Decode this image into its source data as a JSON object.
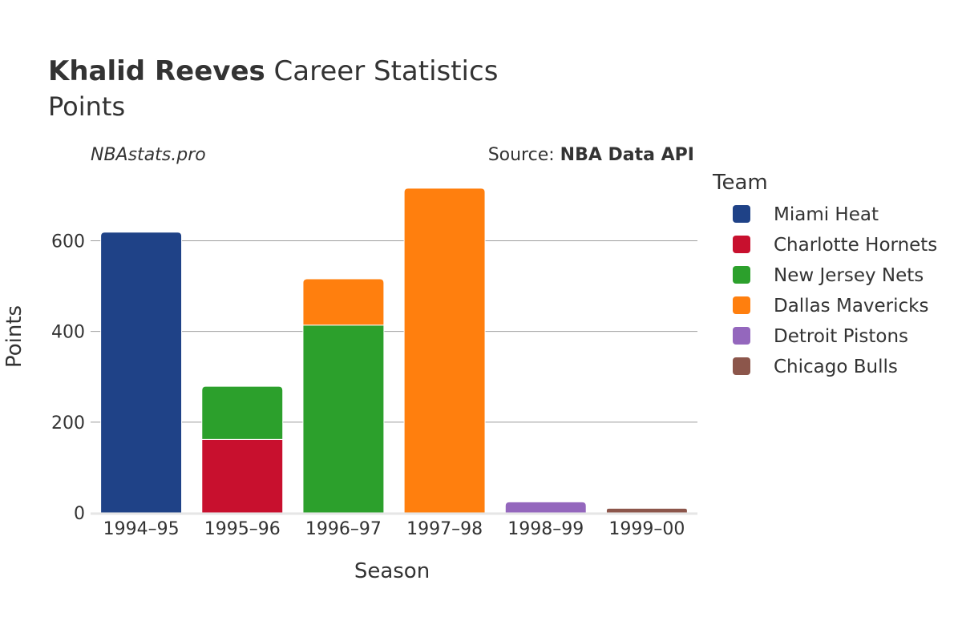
{
  "header": {
    "player_name": "Khalid Reeves",
    "title_rest": " Career Statistics",
    "subtitle": "Points"
  },
  "credits": {
    "site": "NBAstats.pro",
    "source_prefix": "Source: ",
    "source_name": "NBA Data API"
  },
  "legend": {
    "title": "Team",
    "placement": "right"
  },
  "chart_data": {
    "type": "bar",
    "stacked": true,
    "title": "Khalid Reeves Career Statistics",
    "subtitle": "Points",
    "xlabel": "Season",
    "ylabel": "Points",
    "ylim": [
      0,
      760
    ],
    "yticks": [
      0,
      200,
      400,
      600
    ],
    "grid": true,
    "categories": [
      "1994–95",
      "1995–96",
      "1996–97",
      "1997–98",
      "1998–99",
      "1999–00"
    ],
    "series": [
      {
        "name": "Miami Heat",
        "color": "#1f4287",
        "values": [
          619,
          0,
          0,
          0,
          0,
          0
        ]
      },
      {
        "name": "Charlotte Hornets",
        "color": "#c8102e",
        "values": [
          0,
          162,
          0,
          0,
          0,
          0
        ]
      },
      {
        "name": "New Jersey Nets",
        "color": "#2ca02c",
        "values": [
          0,
          117,
          414,
          0,
          0,
          0
        ]
      },
      {
        "name": "Dallas Mavericks",
        "color": "#ff7f0e",
        "values": [
          0,
          0,
          102,
          716,
          0,
          0
        ]
      },
      {
        "name": "Detroit Pistons",
        "color": "#9467bd",
        "values": [
          0,
          0,
          0,
          0,
          24,
          0
        ]
      },
      {
        "name": "Chicago Bulls",
        "color": "#8c564b",
        "values": [
          0,
          0,
          0,
          0,
          0,
          10
        ]
      }
    ]
  }
}
